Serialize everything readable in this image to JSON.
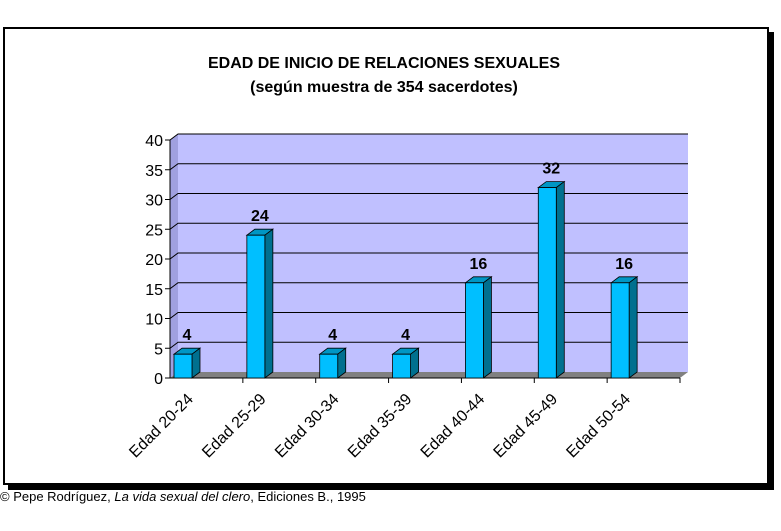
{
  "chart_data": {
    "type": "bar",
    "title": "EDAD DE INICIO DE RELACIONES SEXUALES",
    "subtitle": "(según muestra de 354 sacerdotes)",
    "categories": [
      "Edad 20-24",
      "Edad 25-29",
      "Edad 30-34",
      "Edad 35-39",
      "Edad 40-44",
      "Edad 45-49",
      "Edad 50-54"
    ],
    "values": [
      4,
      24,
      4,
      4,
      16,
      32,
      16
    ],
    "ylim": [
      0,
      40
    ],
    "yticks": [
      0,
      5,
      10,
      15,
      20,
      25,
      30,
      35,
      40
    ],
    "grid": true,
    "legend": "none",
    "colors": {
      "bar_front": "#00bfff",
      "bar_side": "#00708f",
      "bar_top": "#0096c4",
      "plot_bg": "#c0c0ff",
      "floor": "#808080"
    }
  },
  "credit": {
    "prefix": "© Pepe Rodríguez, ",
    "book": "La vida sexual del clero",
    "suffix": ", Ediciones B., 1995"
  }
}
